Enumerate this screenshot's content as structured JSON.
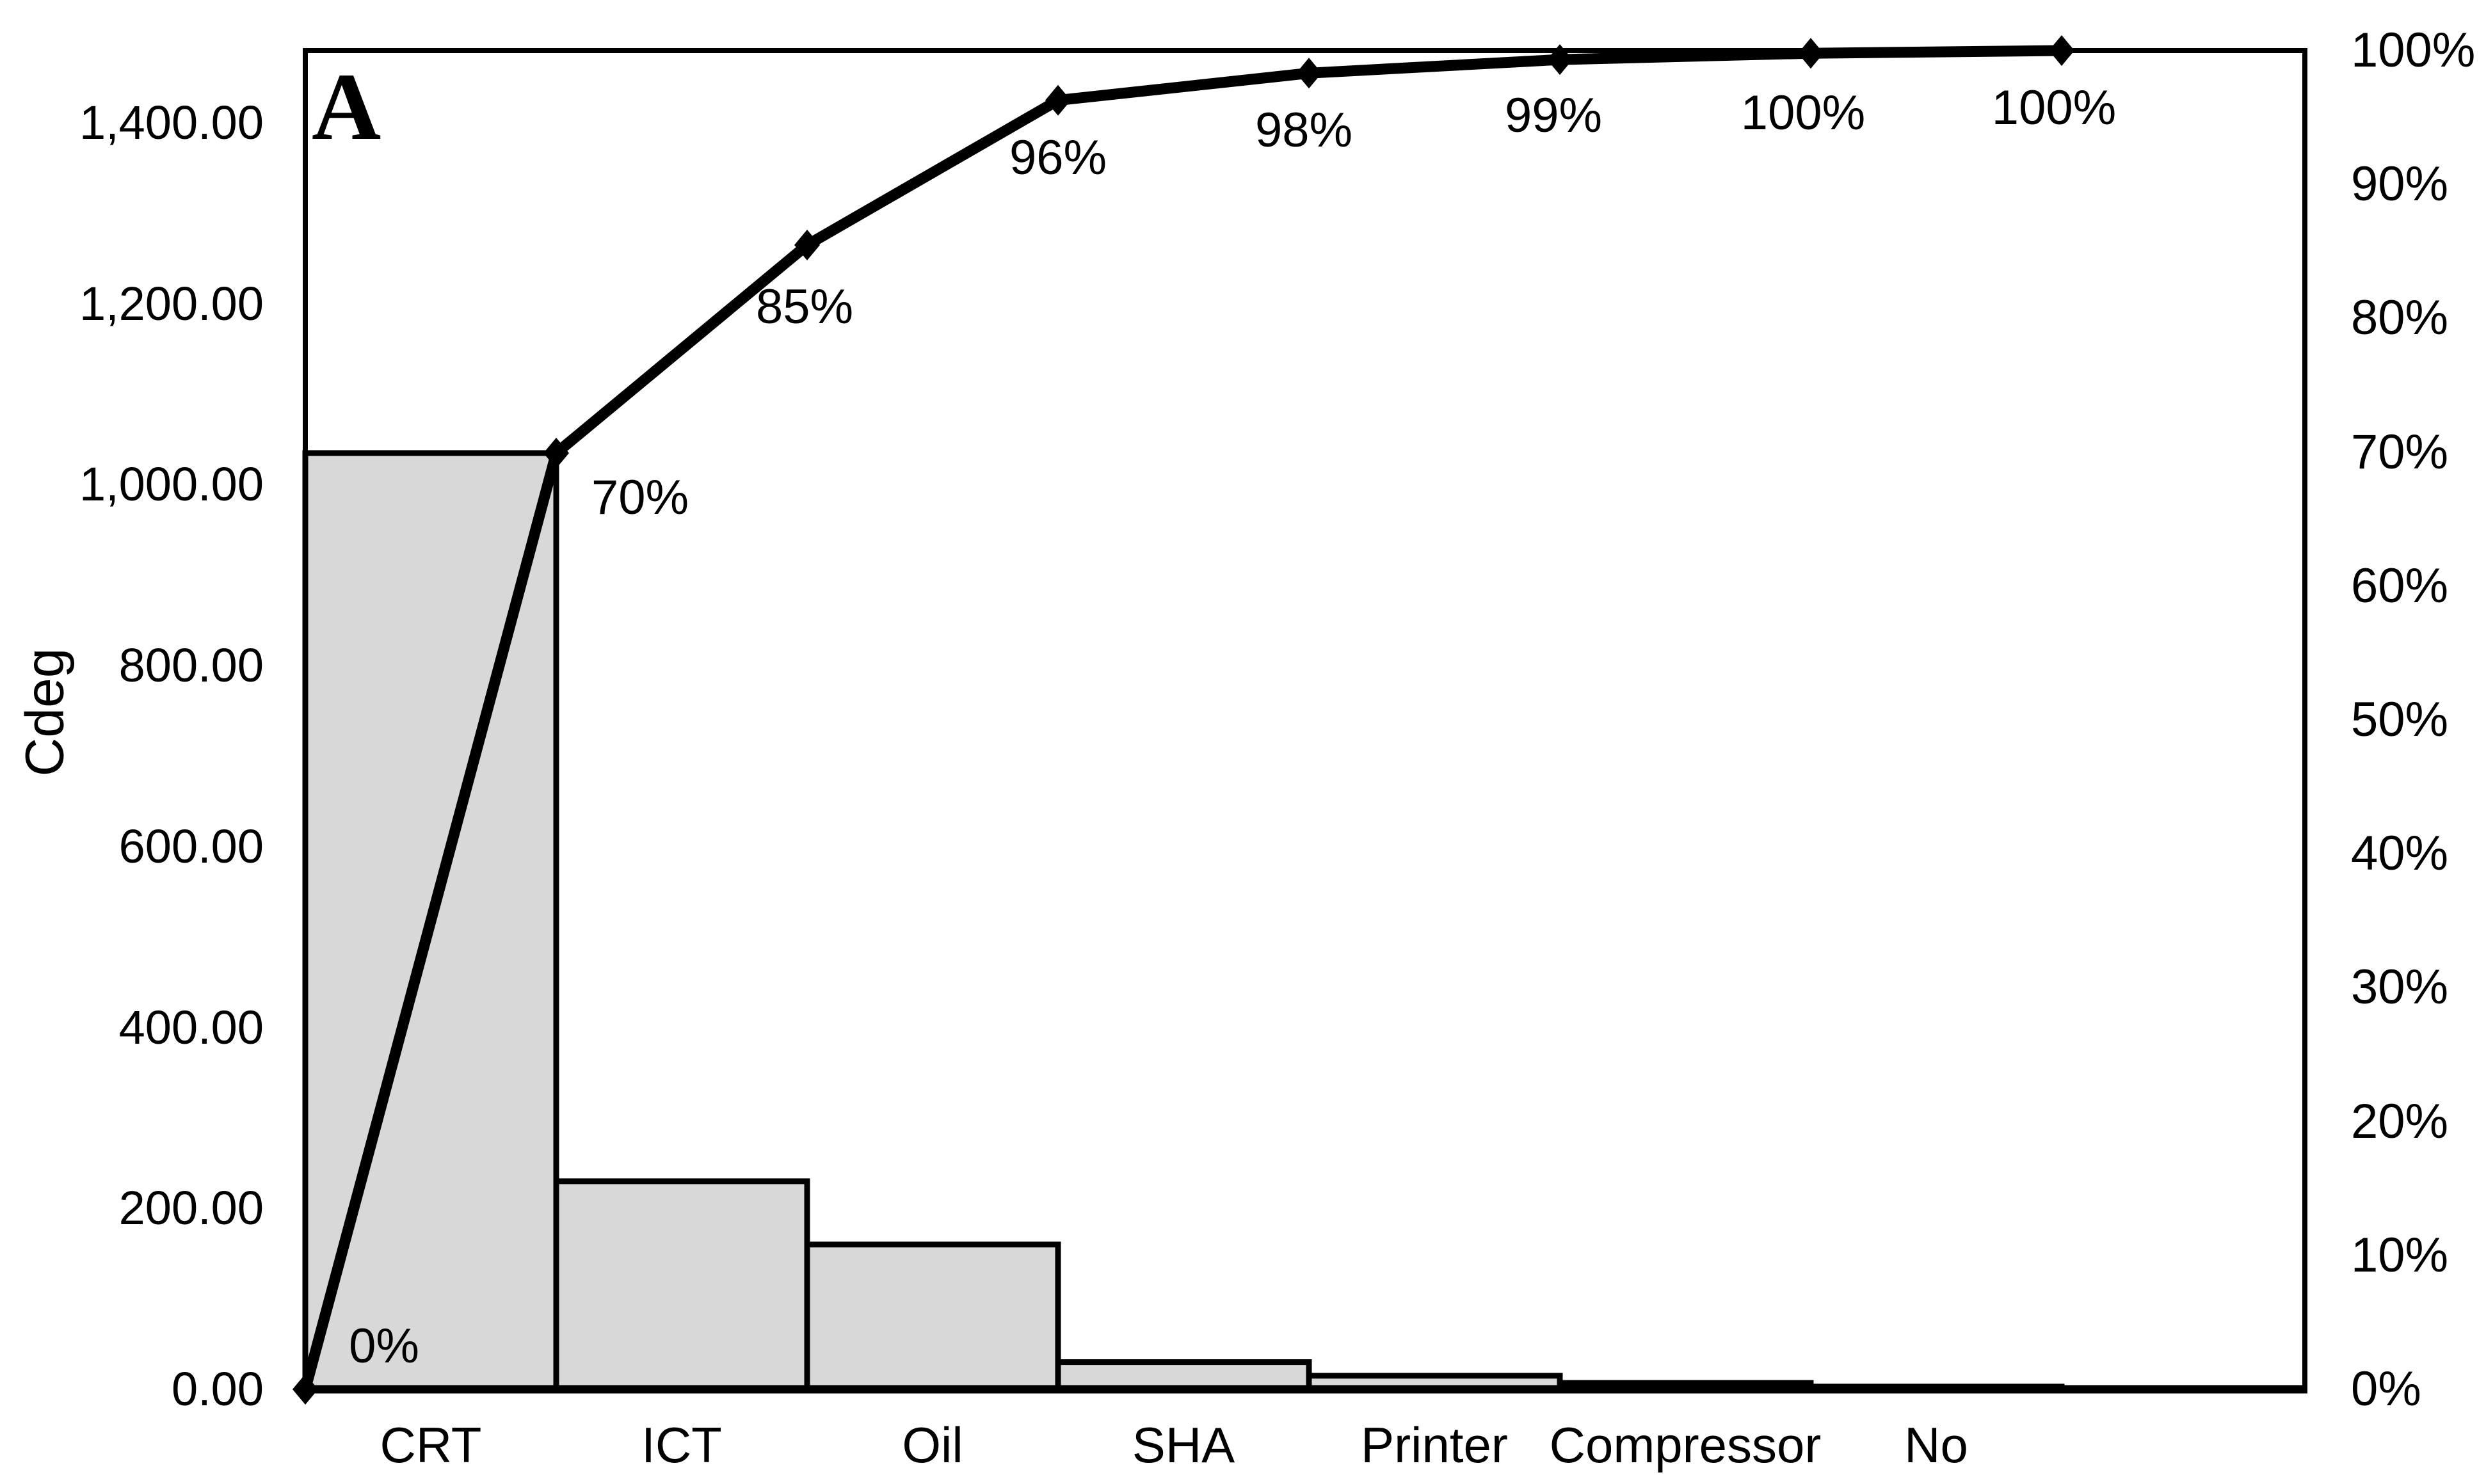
{
  "chart_data": {
    "type": "bar",
    "subtype": "pareto-combo-bar-line",
    "panel_label": "A",
    "title": "",
    "xlabel": "",
    "ylabel": "Cdeg",
    "y2label": "",
    "categories": [
      "CRT",
      "ICT",
      "Oil",
      "SHA",
      "Printer",
      "Compressor",
      "No"
    ],
    "series": [
      {
        "name": "defect-counts-bars",
        "axis": "left",
        "values": [
          1035,
          230,
          160,
          30,
          15,
          7,
          3
        ]
      },
      {
        "name": "cumulative-percentage-line",
        "axis": "right",
        "point_labels": [
          "0%",
          "70%",
          "85%",
          "96%",
          "98%",
          "99%",
          "100%",
          "100%"
        ],
        "values_pct": [
          0,
          70,
          85,
          96,
          98,
          99,
          100,
          100
        ]
      }
    ],
    "ylim": [
      0,
      1480
    ],
    "y2lim": [
      0,
      100
    ],
    "left_ticks": [
      "0.00",
      "200.00",
      "400.00",
      "600.00",
      "800.00",
      "1,000.00",
      "1,200.00",
      "1,400.00"
    ],
    "left_tick_values": [
      0,
      200,
      400,
      600,
      800,
      1000,
      1200,
      1400
    ],
    "right_ticks": [
      "0%",
      "10%",
      "20%",
      "30%",
      "40%",
      "50%",
      "60%",
      "70%",
      "80%",
      "90%",
      "100%"
    ],
    "right_tick_values": [
      0,
      10,
      20,
      30,
      40,
      50,
      60,
      70,
      80,
      90,
      100
    ],
    "grid": false,
    "legend": "none",
    "colors": {
      "bar_fill": "#d8d8d8",
      "bar_border": "#000000",
      "line": "#000000",
      "marker": "#000000",
      "plot_border": "#000000",
      "text": "#000000",
      "background": "#ffffff"
    }
  }
}
